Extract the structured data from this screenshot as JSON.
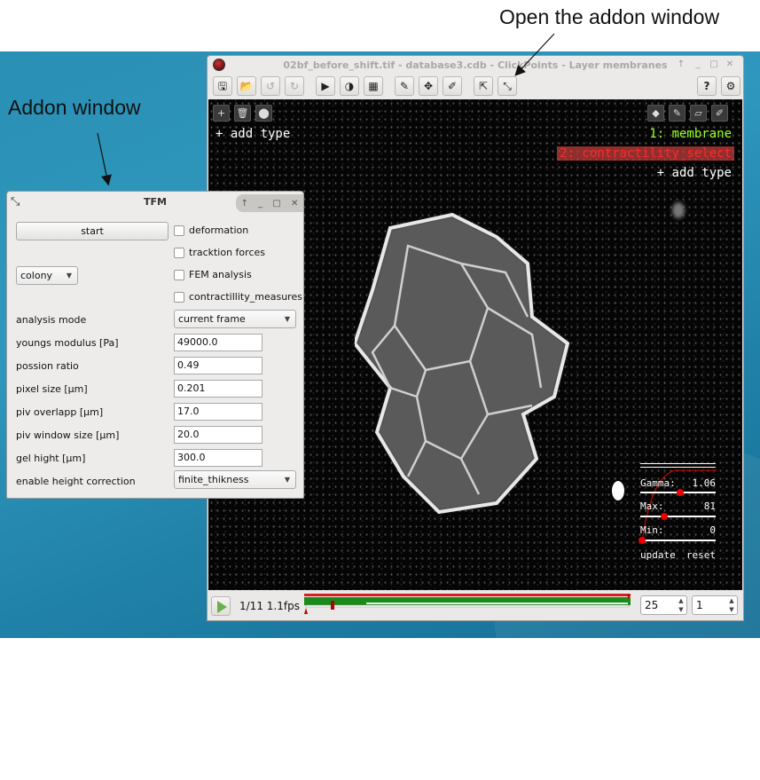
{
  "annotations": {
    "open_addon": "Open the addon window",
    "addon_window": "Addon window"
  },
  "main_window": {
    "title": "02bf_before_shift.tif - database3.cdb - ClickPoints - Layer membranes",
    "controls": [
      "↑",
      "_",
      "□",
      "✕"
    ]
  },
  "toolbar": {
    "buttons": [
      {
        "name": "save",
        "glyph": "🖫"
      },
      {
        "name": "open",
        "glyph": "📂"
      },
      {
        "name": "undo",
        "glyph": "↺"
      },
      {
        "name": "redo",
        "glyph": "↻"
      },
      {
        "name": "play",
        "glyph": "▶"
      },
      {
        "name": "contrast",
        "glyph": "◑"
      },
      {
        "name": "film",
        "glyph": "▦"
      },
      {
        "name": "edit",
        "glyph": "✎"
      },
      {
        "name": "move",
        "glyph": "✥"
      },
      {
        "name": "brush",
        "glyph": "✐"
      },
      {
        "name": "export",
        "glyph": "⇱"
      },
      {
        "name": "addon",
        "glyph": "⤡"
      },
      {
        "name": "help",
        "glyph": "?"
      },
      {
        "name": "settings",
        "glyph": "⚙"
      }
    ]
  },
  "viewer": {
    "left_tools": [
      "+",
      "🗑",
      "⬤"
    ],
    "right_tools": [
      "◆",
      "✎",
      "▱",
      "✐"
    ],
    "add_type_left": "+ add type",
    "types": [
      {
        "label": "1: membrane",
        "color": "#99ff22"
      },
      {
        "label": "2: contractility_select",
        "color": "#ff2a2a"
      }
    ],
    "add_type_right": "+ add type",
    "gamma_panel": {
      "gamma_label": "Gamma:",
      "gamma_value": "1.06",
      "max_label": "Max:",
      "max_value": "81",
      "min_label": "Min:",
      "min_value": "0",
      "update": "update",
      "reset": "reset"
    }
  },
  "bottom_bar": {
    "frame_info": "1/11  1.1fps",
    "spin1": "25",
    "spin2": "1",
    "progress": {
      "current_frame": 1,
      "total_frames": 11
    }
  },
  "tfm": {
    "title": "TFM",
    "controls": [
      "↑",
      "_",
      "□",
      "✕"
    ],
    "start": "start",
    "checkboxes": [
      "deformation",
      "tracktion forces",
      "FEM analysis",
      "contractillity_measures"
    ],
    "colony_select": "colony",
    "fields": [
      {
        "label": "analysis mode",
        "value": "current frame",
        "type": "select"
      },
      {
        "label": "youngs modulus [Pa]",
        "value": "49000.0",
        "type": "text"
      },
      {
        "label": "possion ratio",
        "value": "0.49",
        "type": "text"
      },
      {
        "label": "pixel size [µm]",
        "value": "0.201",
        "type": "text"
      },
      {
        "label": "piv overlapp [µm]",
        "value": "17.0",
        "type": "text"
      },
      {
        "label": "piv window size [µm]",
        "value": "20.0",
        "type": "text"
      },
      {
        "label": "gel hight [µm]",
        "value": "300.0",
        "type": "text"
      },
      {
        "label": "enable height correction",
        "value": "finite_thikness",
        "type": "select"
      }
    ]
  },
  "colors": {
    "desktop": "#2a8fb4",
    "viewer_bg": "#050505",
    "membrane": "#99ff22",
    "contractility": "#ff2a2a",
    "timeline_green": "#1a8a1a",
    "timeline_red": "#d91c1c"
  }
}
